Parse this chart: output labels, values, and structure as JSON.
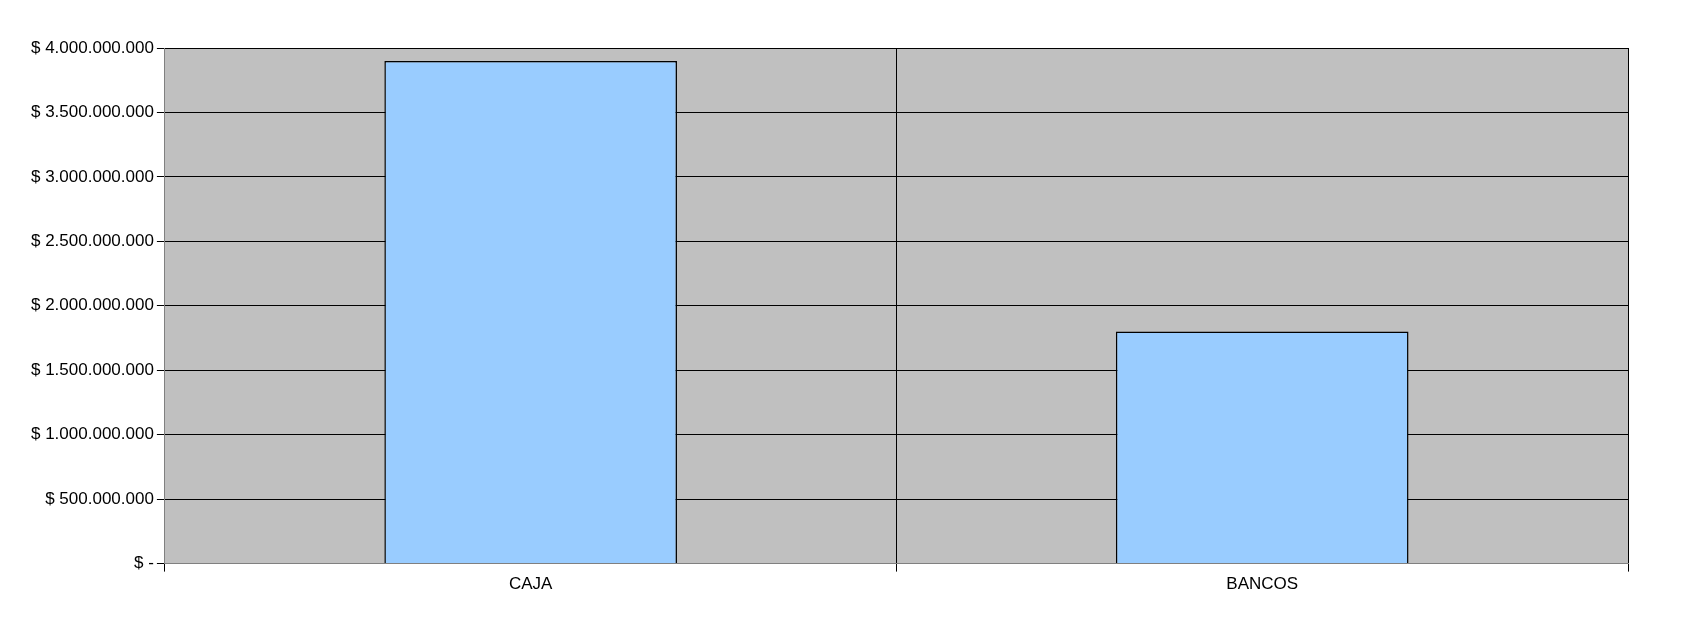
{
  "chart_data": {
    "type": "bar",
    "categories": [
      "CAJA",
      "BANCOS"
    ],
    "values": [
      3900000000,
      1800000000
    ],
    "color": "#99ccff",
    "ylim": [
      0,
      4000000000
    ],
    "yticks": [
      {
        "value": 0,
        "label": "$ -"
      },
      {
        "value": 500000000,
        "label": "$ 500.000.000"
      },
      {
        "value": 1000000000,
        "label": "$ 1.000.000.000"
      },
      {
        "value": 1500000000,
        "label": "$ 1.500.000.000"
      },
      {
        "value": 2000000000,
        "label": "$ 2.000.000.000"
      },
      {
        "value": 2500000000,
        "label": "$ 2.500.000.000"
      },
      {
        "value": 3000000000,
        "label": "$ 3.000.000.000"
      },
      {
        "value": 3500000000,
        "label": "$ 3.500.000.000"
      },
      {
        "value": 4000000000,
        "label": "$ 4.000.000.000"
      }
    ],
    "grid": true
  }
}
